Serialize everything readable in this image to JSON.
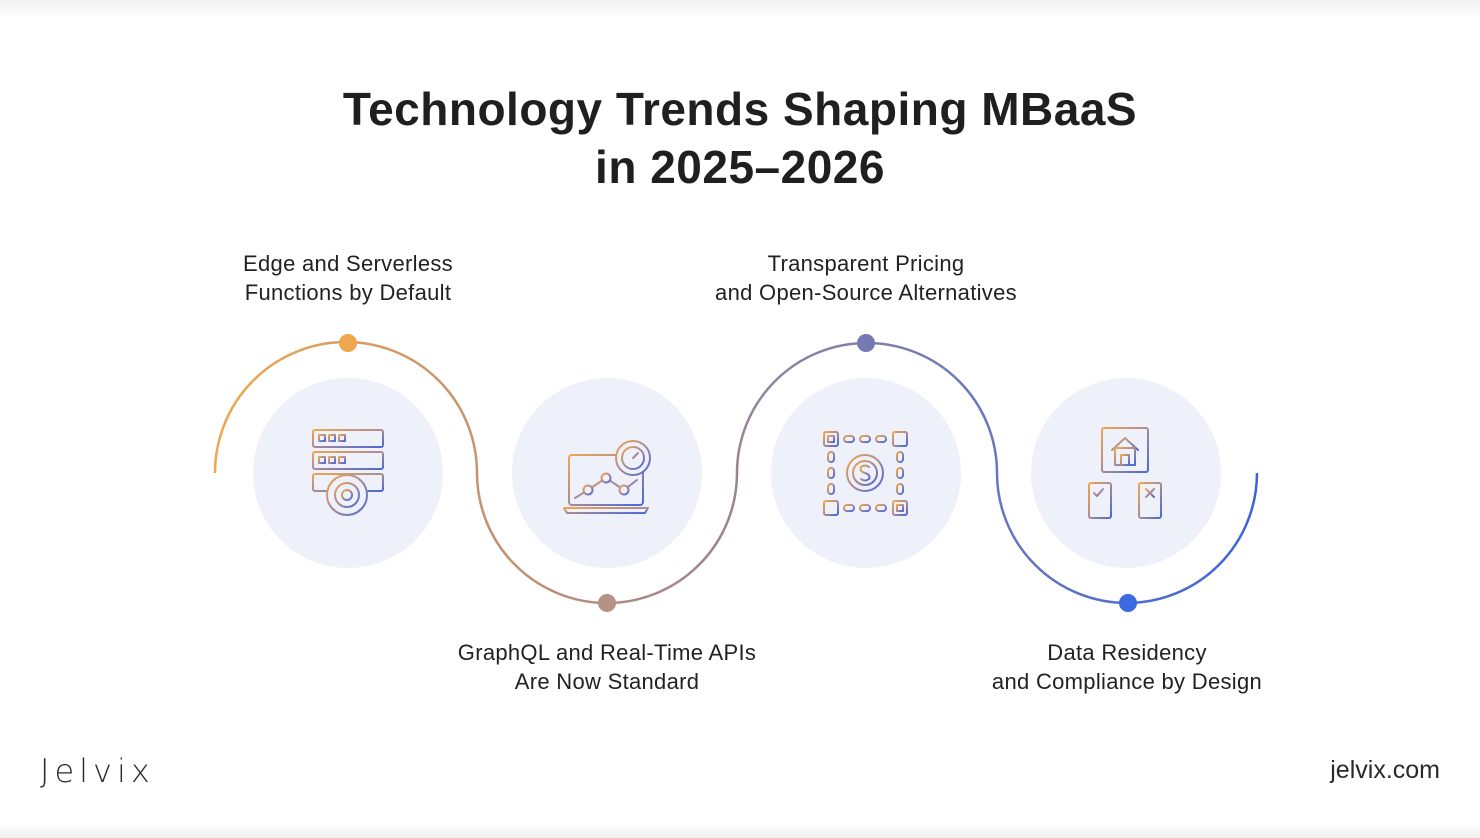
{
  "title": {
    "line1": "Technology Trends Shaping MBaaS",
    "line2": "in 2025–2026"
  },
  "trends": [
    {
      "line1": "Edge and Serverless",
      "line2": "Functions by Default",
      "icon": "server-gear-icon",
      "dot_color": "#f0a64e"
    },
    {
      "line1": "GraphQL and Real-Time APIs",
      "line2": "Are Now Standard",
      "icon": "laptop-analytics-stopwatch-icon",
      "dot_color": "#b59284"
    },
    {
      "line1": "Transparent Pricing",
      "line2": "and Open-Source Alternatives",
      "icon": "dollar-chain-network-icon",
      "dot_color": "#7679b4"
    },
    {
      "line1": "Data Residency",
      "line2": "and Compliance by Design",
      "icon": "house-documents-hierarchy-icon",
      "dot_color": "#3c6ae0"
    }
  ],
  "colors": {
    "gradient_start": "#f0a64e",
    "gradient_mid": "#b08a80",
    "gradient_end": "#3d63db",
    "circle_bg": "#eef0fa"
  },
  "footer": {
    "logo": "Jelvix",
    "site": "jelvix.com"
  }
}
